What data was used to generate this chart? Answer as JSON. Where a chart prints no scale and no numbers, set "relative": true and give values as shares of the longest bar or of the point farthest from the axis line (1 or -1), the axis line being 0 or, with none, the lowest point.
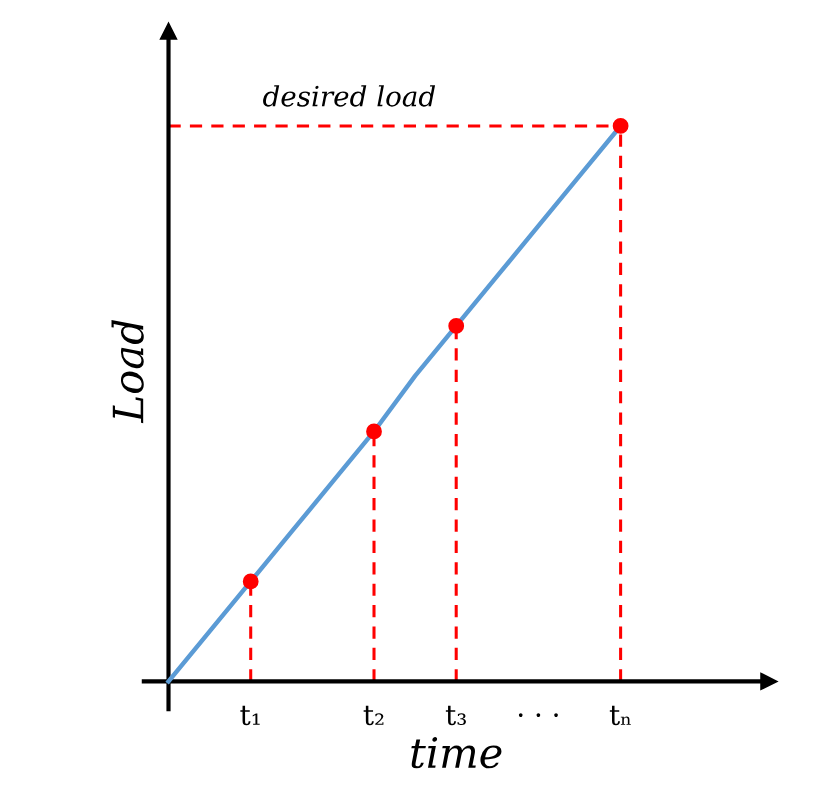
{
  "chart_data": {
    "type": "line",
    "relative": true,
    "xlabel": "time",
    "ylabel": "Load",
    "categories": [
      null,
      null,
      "t₁",
      null,
      null,
      "t₂",
      null,
      "t₃",
      null,
      "· · ·",
      null,
      "tₙ"
    ],
    "grid": false,
    "legend": false,
    "series": [
      {
        "color": "#5b9bd5",
        "marker": "none",
        "values": [
          0,
          0.09,
          0.18,
          0.27,
          0.36,
          0.45,
          0.55,
          0.64,
          0.73,
          0.82,
          0.91,
          1
        ]
      },
      {
        "type": "lollipop",
        "color": "#ff0000",
        "marker": "circle",
        "line_style": "dashed",
        "values": [
          null,
          null,
          0.18,
          null,
          null,
          0.45,
          null,
          0.64,
          null,
          null,
          null,
          1
        ]
      }
    ],
    "ref_lines": [
      {
        "axis": "y",
        "value": 1,
        "label": "desired load",
        "color": "#ff0000",
        "line_style": "dashed"
      }
    ]
  }
}
